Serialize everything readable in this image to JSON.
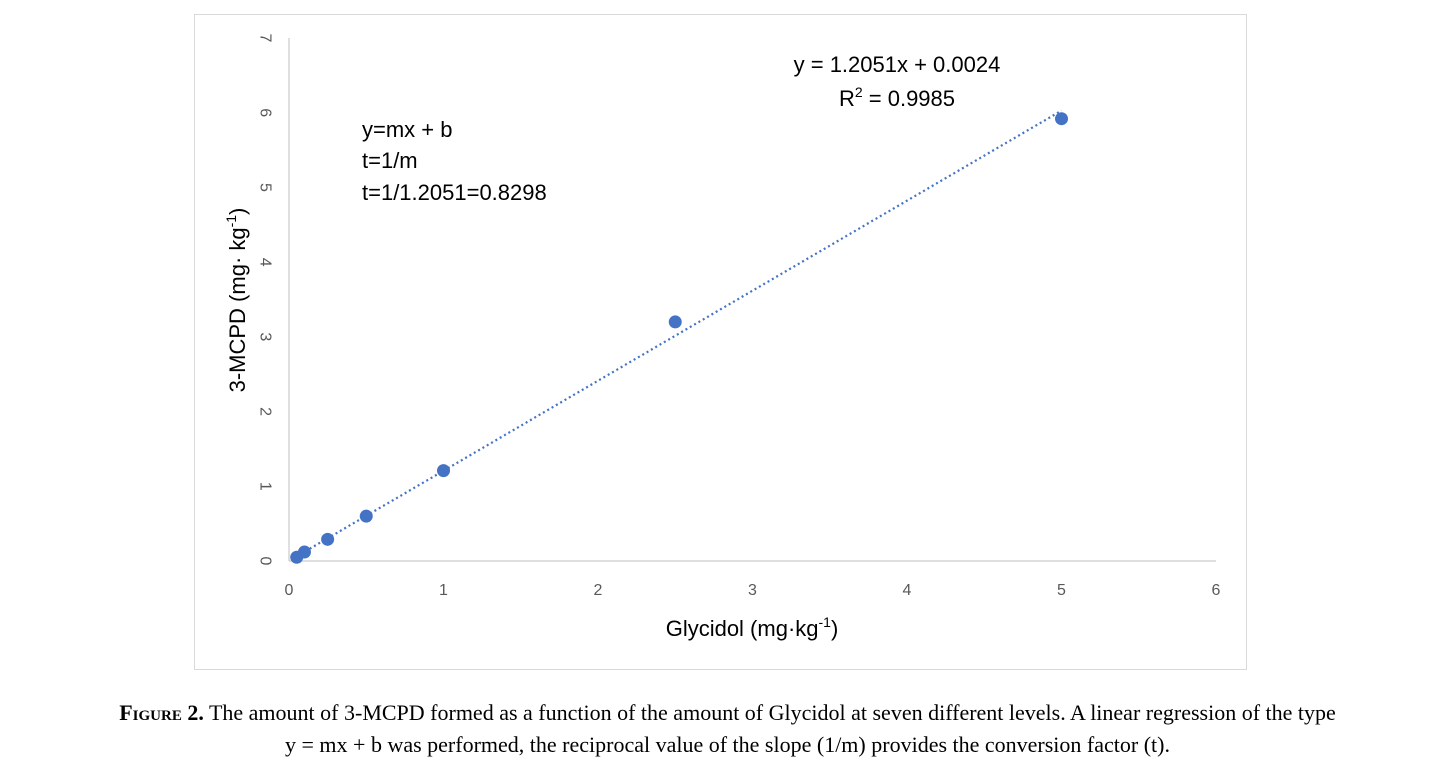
{
  "chart_data": {
    "type": "scatter",
    "xlabel": "Glycidol (mg·kg",
    "xlabel_sup": "-1",
    "xlabel_end": ")",
    "ylabel": "3-MCPD (mg· kg",
    "ylabel_sup": "-1",
    "ylabel_end": ")",
    "xlim": [
      0,
      6
    ],
    "ylim": [
      0,
      7
    ],
    "x_ticks": [
      "0",
      "1",
      "2",
      "3",
      "4",
      "5",
      "6"
    ],
    "y_ticks": [
      "0",
      "1",
      "2",
      "3",
      "4",
      "5",
      "6",
      "7"
    ],
    "grid": false,
    "marker_color": "#4472C4",
    "trendline_color": "#4472C4",
    "series": [
      {
        "x": [
          0.05,
          0.1,
          0.25,
          0.5,
          1,
          2.5,
          5
        ],
        "y": [
          0.05,
          0.12,
          0.29,
          0.6,
          1.21,
          3.2,
          5.92
        ]
      }
    ],
    "trendline": {
      "slope": 1.2051,
      "intercept": 0.0024,
      "x_range": [
        0.05,
        5
      ]
    },
    "equation_text": "y = 1.2051x + 0.0024",
    "r2_prefix": "R",
    "r2_sup": "2",
    "r2_rest": " = 0.9985",
    "annotation_lines": [
      "y=mx + b",
      "t=1/m",
      "t=1/1.2051=0.8298"
    ]
  },
  "caption": {
    "label_first": "F",
    "label_smallcaps": "igure",
    "label_number": "2.",
    "text_line1": "The amount of 3-MCPD formed as a function of the amount of Glycidol at seven different levels. A linear regression of the type",
    "text_line2": "y = mx + b was performed, the reciprocal value of the slope (1/m) provides the conversion factor (t)."
  }
}
